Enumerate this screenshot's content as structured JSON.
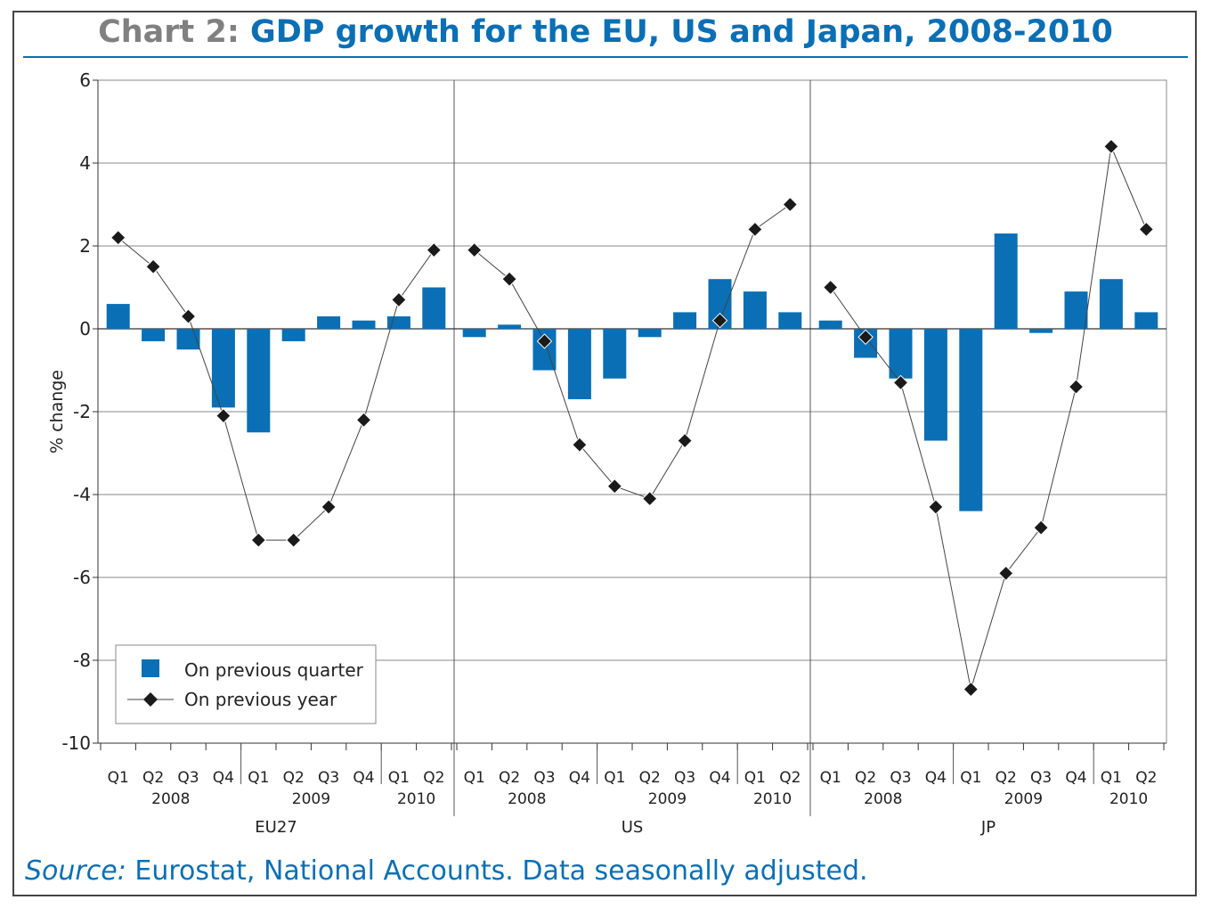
{
  "title": {
    "prefix": "Chart 2:",
    "main": "GDP growth for the EU, US and Japan, 2008-2010"
  },
  "source": {
    "label": "Source:",
    "text": "Eurostat, National Accounts. Data seasonally adjusted."
  },
  "colors": {
    "bar": "#0a6fb4",
    "line": "#444444",
    "marker": "#1a1a1a",
    "grid": "#8a8a8a"
  },
  "chart_data": {
    "type": "bar",
    "ylabel": "% change",
    "ylim": [
      -10,
      6
    ],
    "yticks": [
      6,
      4,
      2,
      0,
      -2,
      -4,
      -6,
      -8,
      -10
    ],
    "grid": true,
    "legend_position": "bottom-left",
    "quarters": [
      "Q1",
      "Q2",
      "Q3",
      "Q4",
      "Q1",
      "Q2",
      "Q3",
      "Q4",
      "Q1",
      "Q2"
    ],
    "years": [
      {
        "label": "2008",
        "quarters": 4
      },
      {
        "label": "2009",
        "quarters": 4
      },
      {
        "label": "2010",
        "quarters": 2
      }
    ],
    "series_names": [
      "On previous quarter",
      "On previous year"
    ],
    "panels": [
      {
        "name": "EU27",
        "on_previous_quarter": [
          0.6,
          -0.3,
          -0.5,
          -1.9,
          -2.5,
          -0.3,
          0.3,
          0.2,
          0.3,
          1.0
        ],
        "on_previous_year": [
          2.2,
          1.5,
          0.3,
          -2.1,
          -5.1,
          -5.1,
          -4.3,
          -2.2,
          0.7,
          1.9
        ]
      },
      {
        "name": "US",
        "on_previous_quarter": [
          -0.2,
          0.1,
          -1.0,
          -1.7,
          -1.2,
          -0.2,
          0.4,
          1.2,
          0.9,
          0.4
        ],
        "on_previous_year": [
          1.9,
          1.2,
          -0.3,
          -2.8,
          -3.8,
          -4.1,
          -2.7,
          0.2,
          2.4,
          3.0
        ]
      },
      {
        "name": "JP",
        "on_previous_quarter": [
          0.2,
          -0.7,
          -1.2,
          -2.7,
          -4.4,
          2.3,
          -0.1,
          0.9,
          1.2,
          0.4
        ],
        "on_previous_year": [
          1.0,
          -0.2,
          -1.3,
          -4.3,
          -8.7,
          -5.9,
          -4.8,
          -1.4,
          4.4,
          2.4
        ]
      }
    ]
  }
}
